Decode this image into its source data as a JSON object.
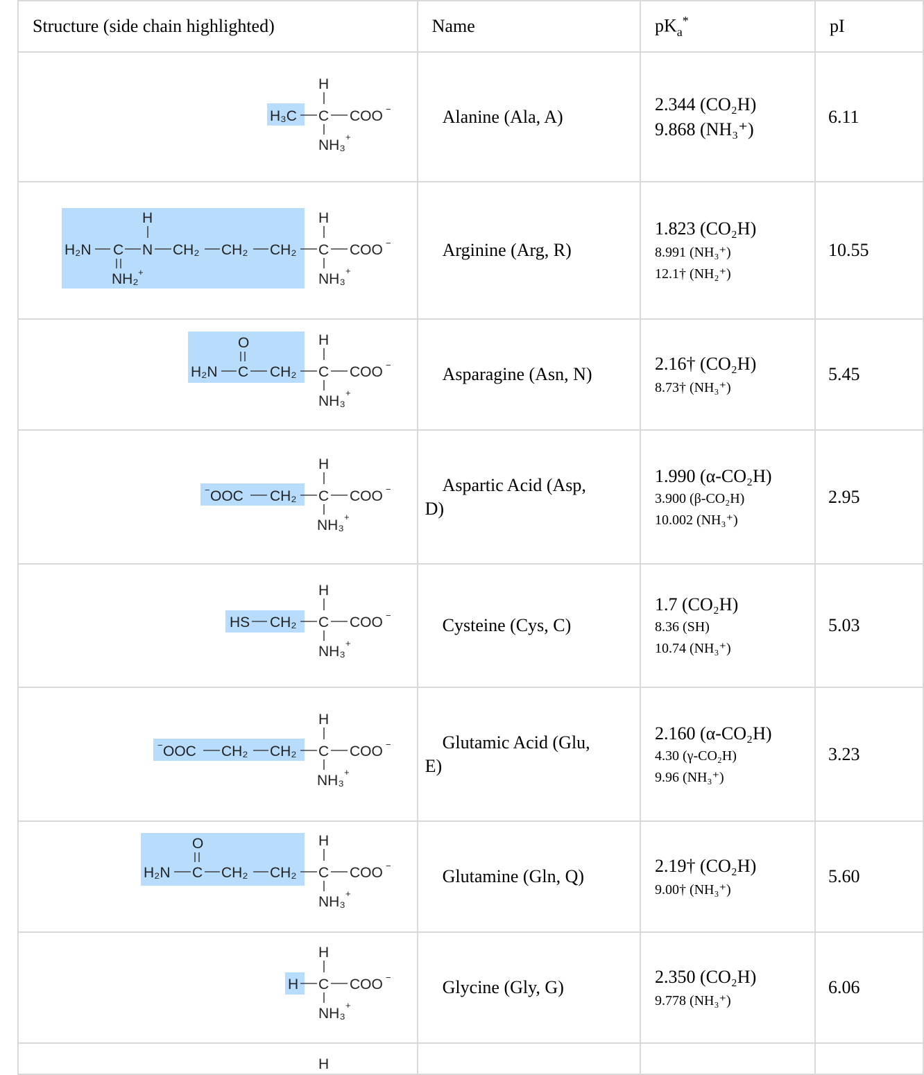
{
  "headers": {
    "structure": "Structure (side chain highlighted)",
    "name": "Name",
    "pka": "pK",
    "pka_sub": "a",
    "pka_sup": "*",
    "pi": "pI"
  },
  "rows": [
    {
      "name": "Alanine (Ala, A)",
      "pka": [
        "2.344 (CO₂H)",
        "9.868 (NH₃⁺)"
      ],
      "pi": "6.11"
    },
    {
      "name": "Arginine (Arg, R)",
      "pka": [
        "1.823 (CO₂H)",
        "8.991 (NH₃⁺)",
        "12.1† (NH₂⁺)"
      ],
      "pi": "10.55"
    },
    {
      "name": "Asparagine (Asn, N)",
      "pka": [
        "2.16† (CO₂H)",
        "8.73† (NH₃⁺)"
      ],
      "pi": "5.45"
    },
    {
      "name": "Aspartic Acid (Asp, D)",
      "name_line1": "Aspartic Acid (Asp,",
      "name_line2": "D)",
      "pka": [
        "1.990 (α-CO₂H)",
        "3.900 (β-CO₂H)",
        "10.002 (NH₃⁺)"
      ],
      "pi": "2.95"
    },
    {
      "name": "Cysteine (Cys, C)",
      "pka": [
        "1.7 (CO₂H)",
        "8.36 (SH)",
        "10.74 (NH₃⁺)"
      ],
      "pi": "5.03"
    },
    {
      "name": "Glutamic Acid (Glu, E)",
      "name_line1": "Glutamic Acid (Glu,",
      "name_line2": "E)",
      "pka": [
        "2.160 (α-CO₂H)",
        "4.30 (γ-CO₂H)",
        "9.96 (NH₃⁺)"
      ],
      "pi": "3.23"
    },
    {
      "name": "Glutamine (Gln, Q)",
      "pka": [
        "2.19† (CO₂H)",
        "9.00† (NH₃⁺)"
      ],
      "pi": "5.60"
    },
    {
      "name": "Glycine (Gly, G)",
      "pka": [
        "2.350 (CO₂H)",
        "9.778 (NH₃⁺)"
      ],
      "pi": "6.06"
    }
  ],
  "structures": {
    "backbone": {
      "h": "H",
      "c": "C",
      "coo": "COO",
      "coo_charge": "−",
      "nh3": "NH₃",
      "nh3_charge": "+"
    },
    "alanine": {
      "side": "H₃C"
    },
    "arginine": {
      "h": "H",
      "h2n": "H₂N",
      "c": "C",
      "n": "N",
      "ch2": "CH₂",
      "nh2": "NH₂",
      "plus": "+"
    },
    "asparagine": {
      "o": "O",
      "h2n": "H₂N",
      "c": "C",
      "ch2": "CH₂"
    },
    "aspartic": {
      "ooc": "OOC",
      "minus": "−",
      "ch2": "CH₂"
    },
    "cysteine": {
      "hs": "HS",
      "ch2": "CH₂"
    },
    "glutamic": {
      "ooc": "OOC",
      "minus": "−",
      "ch2": "CH₂"
    },
    "glutamine": {
      "o": "O",
      "h2n": "H₂N",
      "c": "C",
      "ch2": "CH₂"
    },
    "glycine": {
      "h": "H"
    }
  },
  "colors": {
    "highlight": "#b8dcfb",
    "border": "#d9d9d9"
  }
}
